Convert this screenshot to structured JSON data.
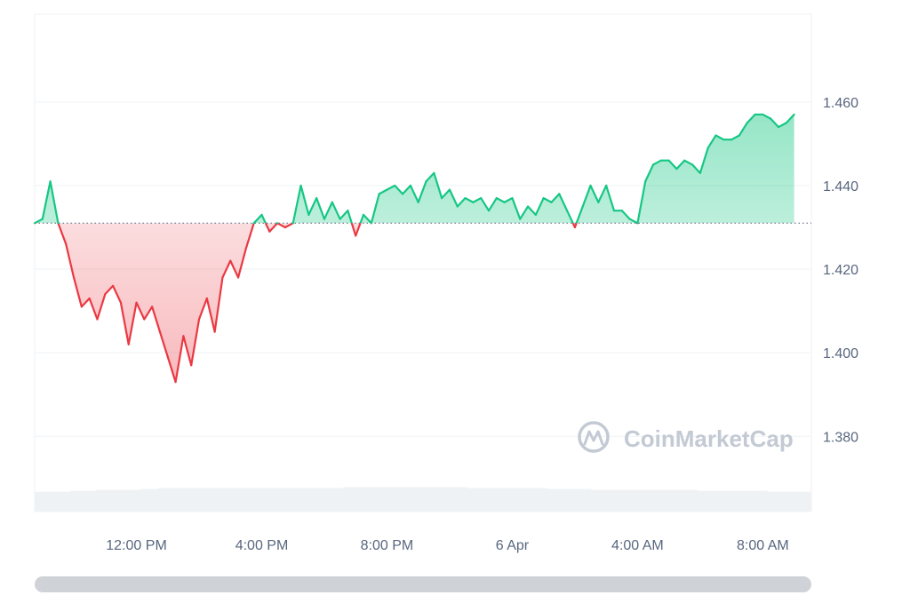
{
  "colors": {
    "up": "#16c784",
    "down": "#ea3943",
    "grid": "#eff2f5",
    "tick_text": "#58667e",
    "volume": "#eff2f5",
    "baseline_dots": "#808a9d",
    "watermark": "#c3cad4",
    "scrollbar": "#cfd3d8"
  },
  "watermark": {
    "text": "CoinMarketCap",
    "icon": "coinmarketcap-logo-icon"
  },
  "chart_data": {
    "type": "area",
    "x_range": [
      0,
      24.8
    ],
    "ylim": [
      1.362,
      1.481
    ],
    "baseline": 1.431,
    "y_ticks": [
      {
        "value": 1.46,
        "label": "1.460"
      },
      {
        "value": 1.44,
        "label": "1.440"
      },
      {
        "value": 1.42,
        "label": "1.420"
      },
      {
        "value": 1.4,
        "label": "1.400"
      },
      {
        "value": 1.38,
        "label": "1.380"
      }
    ],
    "x_ticks": [
      {
        "value": 3.25,
        "label": "12:00 PM"
      },
      {
        "value": 7.25,
        "label": "4:00 PM"
      },
      {
        "value": 11.25,
        "label": "8:00 PM"
      },
      {
        "value": 15.25,
        "label": "6 Apr"
      },
      {
        "value": 19.25,
        "label": "4:00 AM"
      },
      {
        "value": 23.25,
        "label": "8:00 AM"
      }
    ],
    "series": [
      {
        "points": [
          [
            0.0,
            1.431
          ],
          [
            0.25,
            1.432
          ],
          [
            0.5,
            1.441
          ],
          [
            0.75,
            1.431
          ],
          [
            1.0,
            1.426
          ],
          [
            1.25,
            1.418
          ],
          [
            1.5,
            1.411
          ],
          [
            1.75,
            1.413
          ],
          [
            2.0,
            1.408
          ],
          [
            2.25,
            1.414
          ],
          [
            2.5,
            1.416
          ],
          [
            2.75,
            1.412
          ],
          [
            3.0,
            1.402
          ],
          [
            3.25,
            1.412
          ],
          [
            3.5,
            1.408
          ],
          [
            3.75,
            1.411
          ],
          [
            4.0,
            1.405
          ],
          [
            4.25,
            1.399
          ],
          [
            4.5,
            1.393
          ],
          [
            4.75,
            1.404
          ],
          [
            5.0,
            1.397
          ],
          [
            5.25,
            1.408
          ],
          [
            5.5,
            1.413
          ],
          [
            5.75,
            1.405
          ],
          [
            6.0,
            1.418
          ],
          [
            6.25,
            1.422
          ],
          [
            6.5,
            1.418
          ],
          [
            6.75,
            1.425
          ],
          [
            7.0,
            1.431
          ],
          [
            7.25,
            1.433
          ],
          [
            7.5,
            1.429
          ],
          [
            7.75,
            1.431
          ],
          [
            8.0,
            1.43
          ],
          [
            8.25,
            1.431
          ],
          [
            8.5,
            1.44
          ],
          [
            8.75,
            1.433
          ],
          [
            9.0,
            1.437
          ],
          [
            9.25,
            1.432
          ],
          [
            9.5,
            1.436
          ],
          [
            9.75,
            1.432
          ],
          [
            10.0,
            1.434
          ],
          [
            10.25,
            1.428
          ],
          [
            10.5,
            1.433
          ],
          [
            10.75,
            1.431
          ],
          [
            11.0,
            1.438
          ],
          [
            11.25,
            1.439
          ],
          [
            11.5,
            1.44
          ],
          [
            11.75,
            1.438
          ],
          [
            12.0,
            1.44
          ],
          [
            12.25,
            1.436
          ],
          [
            12.5,
            1.441
          ],
          [
            12.75,
            1.443
          ],
          [
            13.0,
            1.437
          ],
          [
            13.25,
            1.439
          ],
          [
            13.5,
            1.435
          ],
          [
            13.75,
            1.437
          ],
          [
            14.0,
            1.436
          ],
          [
            14.25,
            1.437
          ],
          [
            14.5,
            1.434
          ],
          [
            14.75,
            1.437
          ],
          [
            15.0,
            1.436
          ],
          [
            15.25,
            1.437
          ],
          [
            15.5,
            1.432
          ],
          [
            15.75,
            1.435
          ],
          [
            16.0,
            1.433
          ],
          [
            16.25,
            1.437
          ],
          [
            16.5,
            1.436
          ],
          [
            16.75,
            1.438
          ],
          [
            17.0,
            1.434
          ],
          [
            17.25,
            1.43
          ],
          [
            17.5,
            1.435
          ],
          [
            17.75,
            1.44
          ],
          [
            18.0,
            1.436
          ],
          [
            18.25,
            1.44
          ],
          [
            18.5,
            1.434
          ],
          [
            18.75,
            1.434
          ],
          [
            19.0,
            1.432
          ],
          [
            19.25,
            1.431
          ],
          [
            19.5,
            1.441
          ],
          [
            19.75,
            1.445
          ],
          [
            20.0,
            1.446
          ],
          [
            20.25,
            1.446
          ],
          [
            20.5,
            1.444
          ],
          [
            20.75,
            1.446
          ],
          [
            21.0,
            1.445
          ],
          [
            21.25,
            1.443
          ],
          [
            21.5,
            1.449
          ],
          [
            21.75,
            1.452
          ],
          [
            22.0,
            1.451
          ],
          [
            22.25,
            1.451
          ],
          [
            22.5,
            1.452
          ],
          [
            22.75,
            1.455
          ],
          [
            23.0,
            1.457
          ],
          [
            23.25,
            1.457
          ],
          [
            23.5,
            1.456
          ],
          [
            23.75,
            1.454
          ],
          [
            24.0,
            1.455
          ],
          [
            24.25,
            1.457
          ]
        ]
      }
    ],
    "volume_bars": [
      0.21,
      0.21,
      0.21,
      0.21,
      0.22,
      0.22,
      0.22,
      0.23,
      0.23,
      0.23,
      0.23,
      0.23,
      0.24,
      0.24,
      0.25,
      0.25,
      0.25,
      0.25,
      0.25,
      0.25,
      0.25,
      0.25,
      0.25,
      0.25,
      0.25,
      0.25,
      0.25,
      0.25,
      0.25,
      0.25,
      0.25,
      0.25,
      0.25,
      0.25,
      0.25,
      0.26,
      0.26,
      0.26,
      0.26,
      0.26,
      0.26,
      0.26,
      0.26,
      0.26,
      0.26,
      0.26,
      0.26,
      0.26,
      0.26,
      0.25,
      0.25,
      0.25,
      0.25,
      0.25,
      0.25,
      0.25,
      0.25,
      0.25,
      0.24,
      0.24,
      0.24,
      0.24,
      0.24,
      0.23,
      0.23,
      0.23,
      0.23,
      0.23,
      0.23,
      0.23,
      0.23,
      0.23,
      0.23,
      0.23,
      0.23,
      0.22,
      0.22,
      0.22,
      0.22,
      0.22,
      0.22,
      0.22,
      0.22,
      0.21,
      0.21,
      0.21,
      0.21,
      0.21
    ]
  }
}
